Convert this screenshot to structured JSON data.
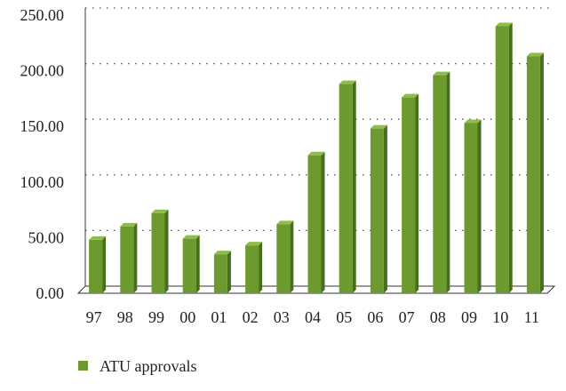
{
  "chart_data": {
    "type": "bar",
    "categories": [
      "97",
      "98",
      "99",
      "00",
      "01",
      "02",
      "03",
      "04",
      "05",
      "06",
      "07",
      "08",
      "09",
      "10",
      "11"
    ],
    "series": [
      {
        "name": "ATU approvals",
        "values": [
          48,
          60,
          72,
          49,
          35,
          43,
          62,
          124,
          188,
          148,
          176,
          196,
          153,
          240,
          213
        ]
      }
    ],
    "ylim": [
      0,
      250
    ],
    "yticks": [
      "0.00",
      "50.00",
      "100.00",
      "150.00",
      "200.00",
      "250.00"
    ],
    "grid": true,
    "legend_position": "bottom-left",
    "colors": {
      "bar_front": "#6d9a2e",
      "bar_side": "#466f1c",
      "bar_top": "#8fbd49",
      "grid": "#555555"
    }
  }
}
